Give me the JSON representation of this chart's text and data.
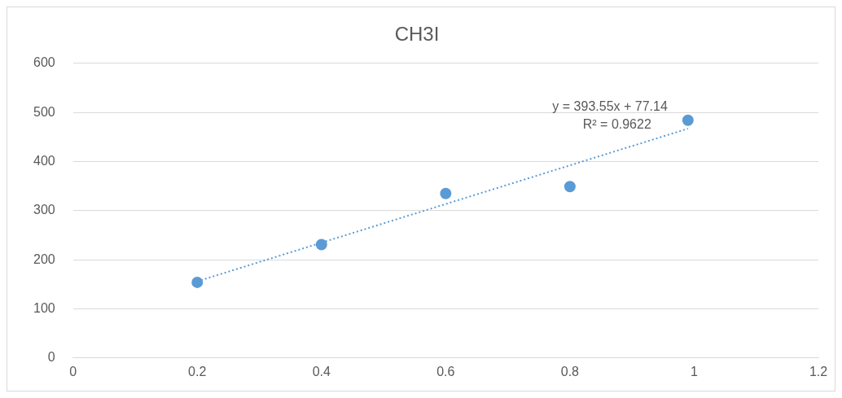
{
  "chart_data": {
    "type": "scatter",
    "title": "CH3I",
    "x": [
      0.2,
      0.4,
      0.6,
      0.8,
      0.99
    ],
    "values": [
      154,
      231,
      335,
      349,
      484
    ],
    "color": "#5b9bd5",
    "marker": "circle",
    "series": [
      {
        "type": "line",
        "x": [
          0.2,
          0.99
        ],
        "values": [
          156,
          467
        ],
        "color": "#5b9bd5",
        "line_style": "dotted",
        "marker": "none"
      }
    ],
    "annotations": [
      "y = 393.55x + 77.14",
      "R² = 0.9622"
    ],
    "xlim": [
      0,
      1.2
    ],
    "xticks": [
      0,
      0.2,
      0.4,
      0.6,
      0.8,
      1,
      1.2
    ],
    "ylim": [
      0,
      600
    ],
    "yticks": [
      0,
      100,
      200,
      300,
      400,
      500,
      600
    ],
    "grid": "y",
    "legend": false
  }
}
